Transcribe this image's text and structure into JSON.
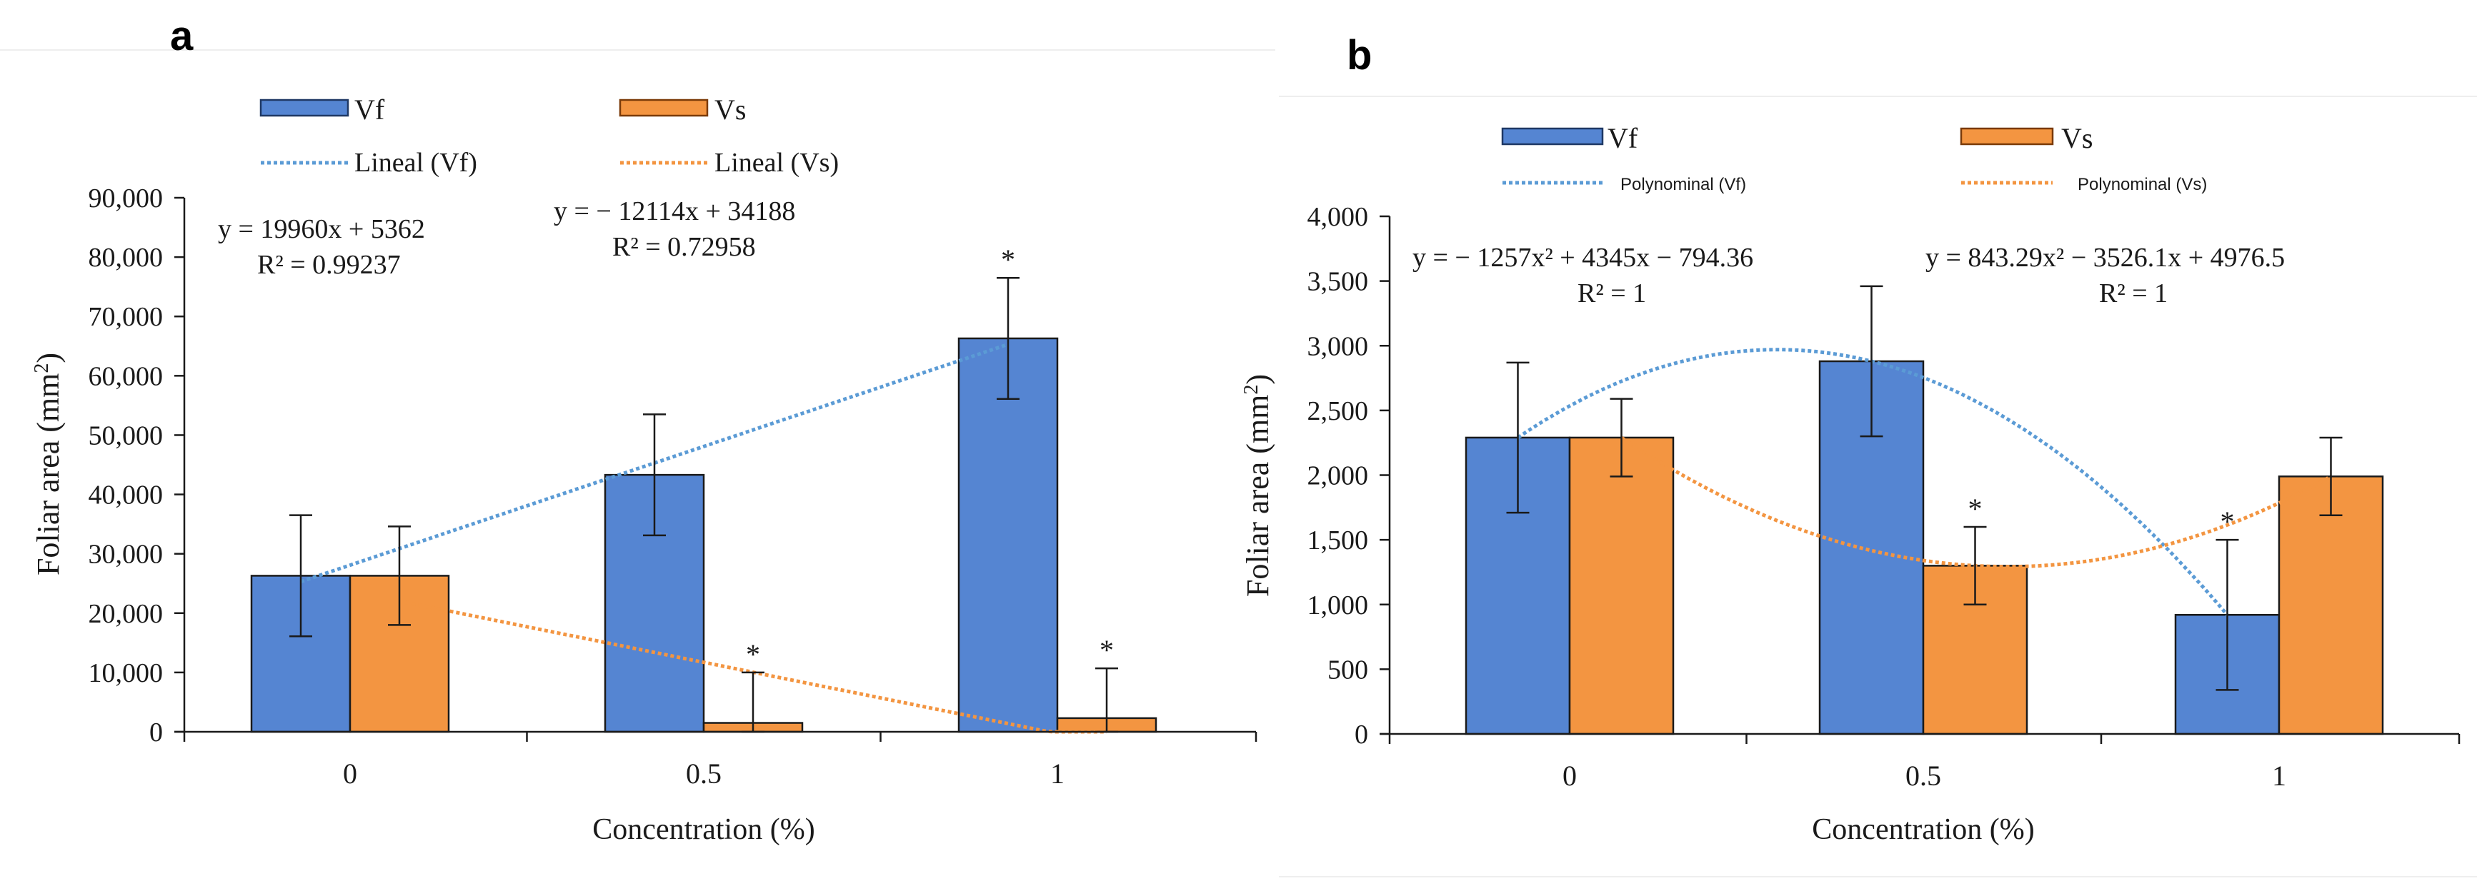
{
  "chart_data": [
    {
      "panel_label": "a",
      "type": "bar",
      "categories": [
        "0",
        "0.5",
        "1"
      ],
      "series": [
        {
          "name": "Vf",
          "values": [
            26300,
            43300,
            66300
          ],
          "errors": [
            10200,
            10200,
            10200
          ],
          "significance": [
            "",
            "",
            "*"
          ],
          "color": "#5585d2"
        },
        {
          "name": "Vs",
          "values": [
            26300,
            1500,
            2300
          ],
          "errors": [
            8300,
            8500,
            8400
          ],
          "significance": [
            "",
            "*",
            "*"
          ],
          "color": "#f39541"
        }
      ],
      "trendlines": [
        {
          "name": "Lineal (Vf)",
          "kind": "linear",
          "series": "Vf",
          "color": "#5b9bd5"
        },
        {
          "name": "Lineal (Vs)",
          "kind": "linear",
          "series": "Vs",
          "color": "#f39541"
        }
      ],
      "equations": [
        {
          "eq": "y = 19960x + 5362",
          "r2": "R² = 0.99237"
        },
        {
          "eq": "y = − 12114x + 34188",
          "r2": "R² = 0.72958"
        }
      ],
      "xlabel": "Concentration (%)",
      "ylabel": "Foliar area (mm",
      "ylabel_sup": "2",
      "ylabel_close": ")",
      "ylim": [
        0,
        90000
      ],
      "yticks": [
        0,
        10000,
        20000,
        30000,
        40000,
        50000,
        60000,
        70000,
        80000,
        90000
      ],
      "ytick_labels": [
        "0",
        "10,000",
        "20,000",
        "30,000",
        "40,000",
        "50,000",
        "60,000",
        "70,000",
        "80,000",
        "90,000"
      ],
      "grid": false,
      "legend_position": "top"
    },
    {
      "panel_label": "b",
      "type": "bar",
      "categories": [
        "0",
        "0.5",
        "1"
      ],
      "series": [
        {
          "name": "Vf",
          "values": [
            2290,
            2880,
            920
          ],
          "errors": [
            580,
            580,
            580
          ],
          "significance": [
            "",
            "",
            "*"
          ],
          "color": "#5585d2"
        },
        {
          "name": "Vs",
          "values": [
            2290,
            1300,
            1990
          ],
          "errors": [
            300,
            300,
            300
          ],
          "significance": [
            "",
            "*",
            ""
          ],
          "color": "#f39541"
        }
      ],
      "trendlines": [
        {
          "name": "Polynominal (Vf)",
          "kind": "poly2",
          "series": "Vf",
          "color": "#5b9bd5"
        },
        {
          "name": "Polynominal (Vs)",
          "kind": "poly2",
          "series": "Vs",
          "color": "#f39541"
        }
      ],
      "equations": [
        {
          "eq": "y = − 1257x² + 4345x − 794.36",
          "r2": "R² = 1"
        },
        {
          "eq": "y = 843.29x² − 3526.1x + 4976.5",
          "r2": "R² = 1"
        }
      ],
      "xlabel": "Concentration (%)",
      "ylabel": "Foliar area (mm",
      "ylabel_sup": "2",
      "ylabel_close": ")",
      "ylim": [
        0,
        4000
      ],
      "yticks": [
        0,
        500,
        1000,
        1500,
        2000,
        2500,
        3000,
        3500,
        4000
      ],
      "ytick_labels": [
        "0",
        "500",
        "1,000",
        "1,500",
        "2,000",
        "2,500",
        "3,000",
        "3,500",
        "4,000"
      ],
      "grid": false,
      "legend_position": "top"
    }
  ]
}
